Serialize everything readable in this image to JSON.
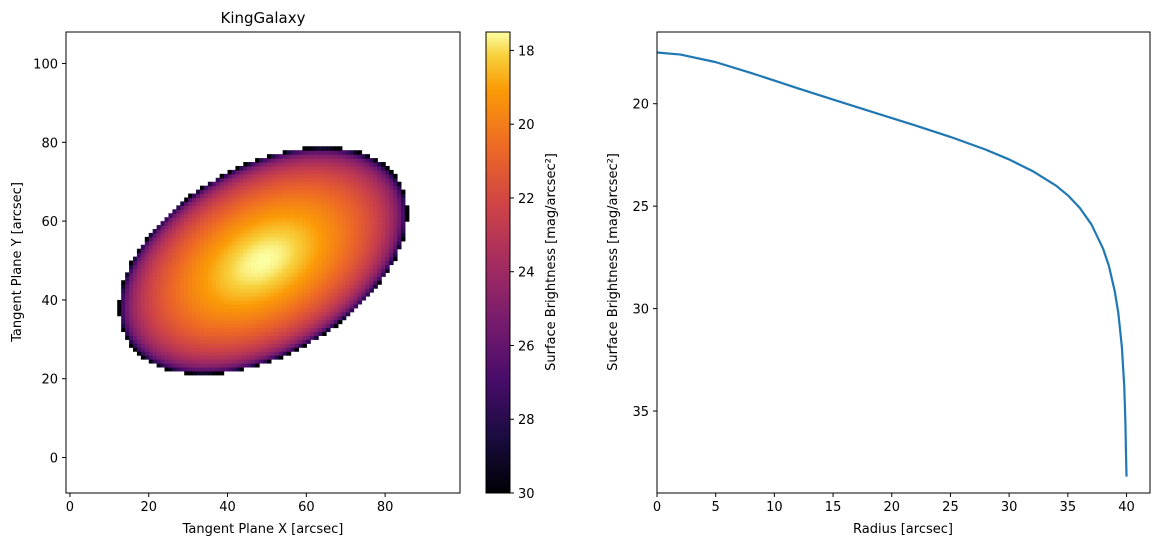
{
  "chart_data": [
    {
      "type": "heatmap",
      "title": "KingGalaxy",
      "xlabel": "Tangent Plane X [arcsec]",
      "ylabel": "Tangent Plane Y [arcsec]",
      "xlim": [
        -1,
        99
      ],
      "ylim": [
        -9,
        108
      ],
      "xticks": [
        0,
        20,
        40,
        60,
        80
      ],
      "yticks": [
        0,
        20,
        40,
        60,
        80,
        100
      ],
      "galaxy": {
        "center": [
          49,
          50
        ],
        "semi_major_arcsec": 40,
        "axis_ratio": 0.6,
        "position_angle_deg": 30,
        "central_brightness": 17.5,
        "edge_brightness": 30,
        "core_radius_arcsec": 13.5,
        "tidal_radius_arcsec": 40
      },
      "colormap": "inferno",
      "colorbar": {
        "label": "Surface Brightness [mag/arcsec²]",
        "range": [
          17.5,
          30
        ],
        "reversed": true,
        "ticks": [
          "18",
          "20",
          "22",
          "24",
          "26",
          "28",
          "30"
        ],
        "tick_values": [
          18,
          20,
          22,
          24,
          26,
          28,
          30
        ]
      }
    },
    {
      "type": "line",
      "xlabel": "Radius [arcsec]",
      "ylabel": "Surface Brightness [mag/arcsec²]",
      "xlim": [
        0,
        42
      ],
      "ylim": [
        39,
        16.5
      ],
      "yaxis_inverted": true,
      "xticks": [
        0,
        5,
        10,
        15,
        20,
        25,
        30,
        35,
        40
      ],
      "yticks": [
        20,
        25,
        30,
        35
      ],
      "series": [
        {
          "color": "#1f77b4",
          "x": [
            0,
            2,
            5,
            8,
            10,
            12,
            15,
            18,
            20,
            22,
            25,
            28,
            30,
            32,
            34,
            35,
            36,
            37,
            38,
            38.5,
            39,
            39.3,
            39.6,
            39.8,
            39.9,
            39.95,
            40.0
          ],
          "y": [
            17.5,
            17.6,
            17.97,
            18.5,
            18.87,
            19.25,
            19.8,
            20.34,
            20.7,
            21.06,
            21.62,
            22.24,
            22.72,
            23.29,
            24.0,
            24.47,
            25.07,
            25.88,
            27.07,
            27.92,
            29.16,
            30.21,
            31.85,
            33.71,
            35.44,
            36.97,
            38.2
          ]
        }
      ]
    }
  ]
}
